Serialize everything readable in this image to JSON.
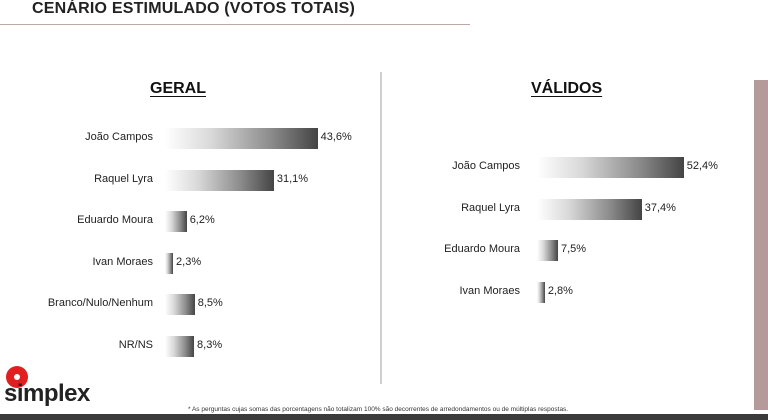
{
  "page_title": "CENÁRIO ESTIMULADO (VOTOS TOTAIS)",
  "logo_text": "simplex",
  "footnote": "* As perguntas cujas somas das porcentagens não totalizam 100% são decorrentes de arredondamentos ou de múltiplas respostas.",
  "colors": {
    "accent": "#e02020",
    "bar_dark": "#444444"
  },
  "chart_data": [
    {
      "type": "bar",
      "orientation": "horizontal",
      "title": "GERAL",
      "categories": [
        "João Campos",
        "Raquel Lyra",
        "Eduardo Moura",
        "Ivan Moraes",
        "Branco/Nulo/Nenhum",
        "NR/NS"
      ],
      "values": [
        43.6,
        31.1,
        6.2,
        2.3,
        8.5,
        8.3
      ],
      "value_labels": [
        "43,6%",
        "31,1%",
        "6,2%",
        "2,3%",
        "8,5%",
        "8,3%"
      ]
    },
    {
      "type": "bar",
      "orientation": "horizontal",
      "title": "VÁLIDOS",
      "categories": [
        "João Campos",
        "Raquel Lyra",
        "Eduardo Moura",
        "Ivan Moraes"
      ],
      "values": [
        52.4,
        37.4,
        7.5,
        2.8
      ],
      "value_labels": [
        "52,4%",
        "37,4%",
        "7,5%",
        "2,8%"
      ]
    }
  ]
}
